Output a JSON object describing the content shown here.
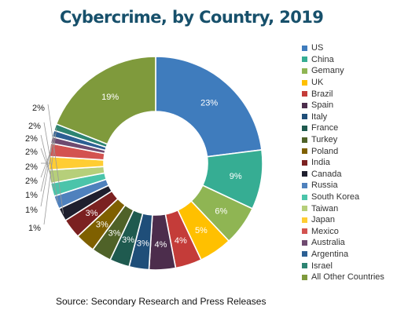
{
  "chart_data": {
    "type": "donut",
    "title": "Cybercrime, by Country, 2019",
    "source": "Source: Secondary Research and Press Releases",
    "legend_position": "right",
    "value_suffix": "%",
    "series": [
      {
        "name": "US",
        "value": 23,
        "label": "23%",
        "color": "#3f7cbd"
      },
      {
        "name": "China",
        "value": 9,
        "label": "9%",
        "color": "#36ad93"
      },
      {
        "name": "Gemany",
        "value": 6,
        "label": "6%",
        "color": "#8fb553"
      },
      {
        "name": "UK",
        "value": 5,
        "label": "5%",
        "color": "#ffc000"
      },
      {
        "name": "Brazil",
        "value": 4,
        "label": "4%",
        "color": "#c43c39"
      },
      {
        "name": "Spain",
        "value": 4,
        "label": "4%",
        "color": "#4c2d4c"
      },
      {
        "name": "Italy",
        "value": 3,
        "label": "3%",
        "color": "#1f4e79"
      },
      {
        "name": "France",
        "value": 3,
        "label": "3%",
        "color": "#1f5a4f"
      },
      {
        "name": "Turkey",
        "value": 3,
        "label": "3%",
        "color": "#4f6228"
      },
      {
        "name": "Poland",
        "value": 3,
        "label": "3%",
        "color": "#7f6000"
      },
      {
        "name": "India",
        "value": 3,
        "label": "3%",
        "color": "#7b2121"
      },
      {
        "name": "Canada",
        "value": 2,
        "label": "2%",
        "color": "#1f1f2e"
      },
      {
        "name": "Russia",
        "value": 2,
        "label": "2%",
        "color": "#4f81bd"
      },
      {
        "name": "South Korea",
        "value": 2,
        "label": "2%",
        "color": "#4bc4aa"
      },
      {
        "name": "Taiwan",
        "value": 2,
        "label": "2%",
        "color": "#b6cf7a"
      },
      {
        "name": "Japan",
        "value": 2,
        "label": "2%",
        "color": "#ffcd33"
      },
      {
        "name": "Mexico",
        "value": 2,
        "label": "2%",
        "color": "#d35350"
      },
      {
        "name": "Australia",
        "value": 1,
        "label": "1%",
        "color": "#6f4a70"
      },
      {
        "name": "Argentina",
        "value": 1,
        "label": "1%",
        "color": "#2c5f93"
      },
      {
        "name": "Israel",
        "value": 1,
        "label": "1%",
        "color": "#2d8472"
      },
      {
        "name": "All Other Countries",
        "value": 19,
        "label": "19%",
        "color": "#7f9a3c"
      }
    ]
  }
}
